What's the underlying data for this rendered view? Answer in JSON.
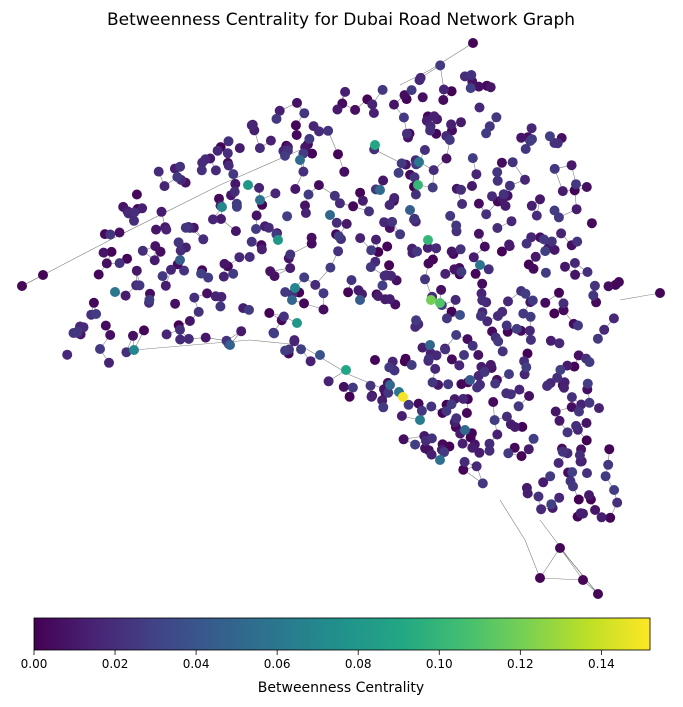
{
  "chart_data": {
    "type": "scatter",
    "title": "Betweenness Centrality for Dubai Road Network Graph",
    "colorbar": {
      "label": "Betweenness Centrality",
      "min": 0.0,
      "max": 0.152,
      "ticks": [
        0.0,
        0.02,
        0.04,
        0.06,
        0.08,
        0.1,
        0.12,
        0.14
      ],
      "tick_labels": [
        "0.00",
        "0.02",
        "0.04",
        "0.06",
        "0.08",
        "0.10",
        "0.12",
        "0.14"
      ],
      "colormap": "viridis",
      "orientation": "horizontal"
    },
    "nodes": {
      "description": "Road network intersections colored by betweenness centrality",
      "highest_value": 0.15,
      "high_values": [
        0.15,
        0.12,
        0.11,
        0.1,
        0.1,
        0.09,
        0.09,
        0.08,
        0.08,
        0.08,
        0.07,
        0.07,
        0.07,
        0.06,
        0.06,
        0.06,
        0.05,
        0.05
      ],
      "typical_range": [
        0.0,
        0.03
      ]
    },
    "colors": {
      "edge": "#808080",
      "node_border": "none"
    }
  }
}
